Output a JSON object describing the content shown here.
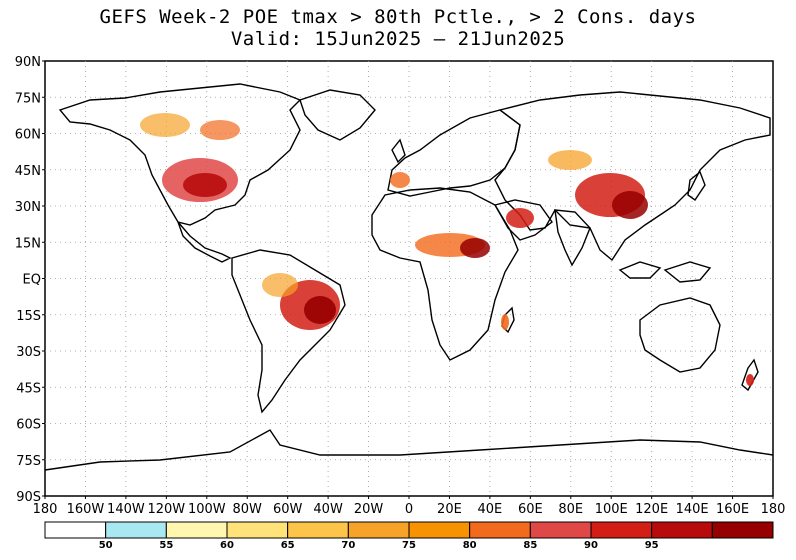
{
  "title": "GEFS Week-2 POE tmax > 80th Pctle., > 2 Cons. days",
  "subtitle": "Valid: 15Jun2025 — 21Jun2025",
  "map": {
    "lat_labels": [
      "90N",
      "75N",
      "60N",
      "45N",
      "30N",
      "15N",
      "EQ",
      "15S",
      "30S",
      "45S",
      "60S",
      "75S",
      "90S"
    ],
    "lon_labels": [
      "180",
      "160W",
      "140W",
      "120W",
      "100W",
      "80W",
      "60W",
      "40W",
      "20W",
      "0",
      "20E",
      "40E",
      "60E",
      "80E",
      "100E",
      "120E",
      "140E",
      "160E",
      "180"
    ],
    "grid": "dotted"
  },
  "colorbar": {
    "colors": [
      "#ffffff",
      "#a8e8f0",
      "#fff7b0",
      "#ffe27a",
      "#fcc54a",
      "#f7a32a",
      "#f79200",
      "#f26a1c",
      "#e04848",
      "#d21e14",
      "#b80c0c",
      "#960000"
    ],
    "labels": [
      "50",
      "55",
      "60",
      "65",
      "70",
      "75",
      "80",
      "85",
      "90",
      "95"
    ]
  }
}
